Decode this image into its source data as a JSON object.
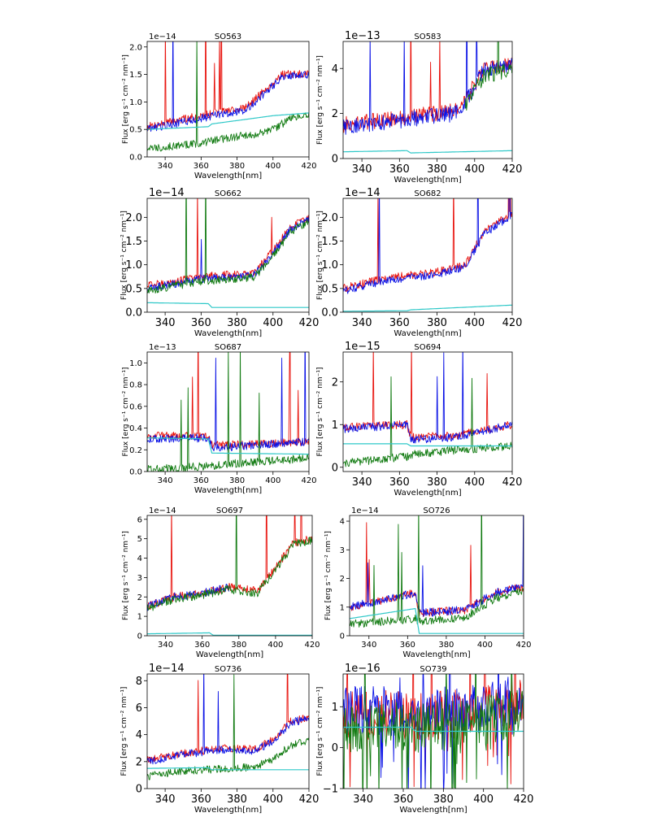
{
  "figure": {
    "colors": {
      "red": "#e8120c",
      "blue": "#0a12e6",
      "green": "#107a10",
      "cyan": "#2ec8c8"
    },
    "series_names": [
      "red",
      "blue",
      "green",
      "cyan"
    ]
  },
  "chart_data": [
    {
      "type": "line",
      "title": "SO563",
      "xlabel": "Wavelength[nm]",
      "ylabel": "Flux [erg s⁻¹ cm⁻² nm⁻¹]",
      "exponent": "1e−14",
      "xlim": [
        330,
        420
      ],
      "ylim": [
        0,
        2.1
      ],
      "xticks": [
        "340",
        "360",
        "380",
        "400",
        "420"
      ],
      "yticks": [
        "0.0",
        "0.5",
        "1.0",
        "1.5",
        "2.0"
      ],
      "series": [
        {
          "name": "red",
          "x": [
            330,
            345,
            360,
            375,
            385,
            395,
            405,
            420
          ],
          "values": [
            0.55,
            0.65,
            0.75,
            0.85,
            0.9,
            1.2,
            1.5,
            1.5
          ]
        },
        {
          "name": "blue",
          "x": [
            330,
            345,
            360,
            375,
            385,
            395,
            405,
            420
          ],
          "values": [
            0.5,
            0.6,
            0.7,
            0.8,
            0.85,
            1.15,
            1.45,
            1.5
          ]
        },
        {
          "name": "green",
          "x": [
            330,
            345,
            360,
            375,
            390,
            400,
            410,
            420
          ],
          "values": [
            0.15,
            0.2,
            0.25,
            0.35,
            0.4,
            0.5,
            0.7,
            0.8
          ]
        },
        {
          "name": "cyan",
          "x": [
            330,
            364,
            366,
            400,
            420
          ],
          "values": [
            0.5,
            0.55,
            0.6,
            0.75,
            0.8
          ]
        }
      ]
    },
    {
      "type": "line",
      "title": "SO583",
      "xlabel": "Wavelength[nm]",
      "ylabel": "Flux [erg s⁻¹ cm⁻² nm⁻¹]",
      "exponent": "1e−13",
      "xlim": [
        330,
        420
      ],
      "ylim": [
        0,
        5.2
      ],
      "xticks": [
        "340",
        "360",
        "380",
        "400",
        "420"
      ],
      "yticks": [
        "0",
        "2",
        "4"
      ],
      "series": [
        {
          "name": "red",
          "x": [
            330,
            350,
            370,
            390,
            395,
            405,
            420
          ],
          "values": [
            1.5,
            1.7,
            1.9,
            2.1,
            2.6,
            4.0,
            4.2
          ]
        },
        {
          "name": "blue",
          "x": [
            330,
            350,
            370,
            390,
            395,
            405,
            420
          ],
          "values": [
            1.4,
            1.6,
            1.8,
            2.0,
            2.5,
            3.9,
            4.1
          ]
        },
        {
          "name": "green",
          "x": [
            395,
            405,
            420
          ],
          "values": [
            2.4,
            3.7,
            3.9
          ]
        },
        {
          "name": "cyan",
          "x": [
            330,
            364,
            366,
            420
          ],
          "values": [
            0.3,
            0.35,
            0.25,
            0.35
          ]
        }
      ]
    },
    {
      "type": "line",
      "title": "SO662",
      "xlabel": "Wavelength[nm]",
      "ylabel": "Flux [erg s⁻¹ cm⁻² nm⁻¹]",
      "exponent": "1e−14",
      "xlim": [
        330,
        420
      ],
      "ylim": [
        0,
        2.4
      ],
      "xticks": [
        "340",
        "360",
        "380",
        "400",
        "420"
      ],
      "yticks": [
        "0.0",
        "0.5",
        "1.0",
        "1.5",
        "2.0"
      ],
      "series": [
        {
          "name": "red",
          "x": [
            330,
            345,
            360,
            380,
            390,
            400,
            410,
            420
          ],
          "values": [
            0.55,
            0.65,
            0.75,
            0.8,
            0.85,
            1.3,
            1.8,
            2.0
          ]
        },
        {
          "name": "blue",
          "x": [
            330,
            345,
            360,
            380,
            390,
            400,
            410,
            420
          ],
          "values": [
            0.5,
            0.6,
            0.7,
            0.75,
            0.8,
            1.25,
            1.75,
            1.95
          ]
        },
        {
          "name": "green",
          "x": [
            330,
            345,
            360,
            380,
            390,
            400,
            410,
            420
          ],
          "values": [
            0.45,
            0.55,
            0.65,
            0.7,
            0.75,
            1.2,
            1.7,
            1.9
          ]
        },
        {
          "name": "cyan",
          "x": [
            330,
            364,
            366,
            420
          ],
          "values": [
            0.2,
            0.18,
            0.1,
            0.1
          ]
        }
      ]
    },
    {
      "type": "line",
      "title": "SO682",
      "xlabel": "Wavelength[nm]",
      "ylabel": "Flux [erg s⁻¹ cm⁻² nm⁻¹]",
      "exponent": "1e−14",
      "xlim": [
        330,
        420
      ],
      "ylim": [
        0,
        2.4
      ],
      "xticks": [
        "340",
        "360",
        "380",
        "400",
        "420"
      ],
      "yticks": [
        "0.0",
        "0.5",
        "1.0",
        "1.5",
        "2.0"
      ],
      "series": [
        {
          "name": "red",
          "x": [
            330,
            345,
            360,
            380,
            395,
            405,
            420
          ],
          "values": [
            0.5,
            0.65,
            0.75,
            0.85,
            1.0,
            1.7,
            2.1
          ]
        },
        {
          "name": "blue",
          "x": [
            330,
            345,
            360,
            380,
            395,
            405,
            420
          ],
          "values": [
            0.45,
            0.6,
            0.7,
            0.8,
            0.95,
            1.65,
            2.05
          ]
        },
        {
          "name": "green",
          "x": [],
          "values": []
        },
        {
          "name": "cyan",
          "x": [
            330,
            364,
            366,
            420
          ],
          "values": [
            0.02,
            0.03,
            0.05,
            0.15
          ]
        }
      ]
    },
    {
      "type": "line",
      "title": "SO687",
      "xlabel": "Wavelength[nm]",
      "ylabel": "Flux [erg s⁻¹ cm⁻² nm⁻¹]",
      "exponent": "1e−13",
      "xlim": [
        330,
        420
      ],
      "ylim": [
        0,
        1.1
      ],
      "xticks": [
        "340",
        "360",
        "380",
        "400",
        "420"
      ],
      "yticks": [
        "0.0",
        "0.2",
        "0.4",
        "0.6",
        "0.8",
        "1.0"
      ],
      "series": [
        {
          "name": "red",
          "x": [
            330,
            364,
            366,
            390,
            420
          ],
          "values": [
            0.33,
            0.32,
            0.24,
            0.25,
            0.28
          ]
        },
        {
          "name": "blue",
          "x": [
            330,
            364,
            366,
            390,
            420
          ],
          "values": [
            0.3,
            0.31,
            0.22,
            0.24,
            0.28
          ]
        },
        {
          "name": "green",
          "x": [
            330,
            364,
            390,
            420
          ],
          "values": [
            0.02,
            0.05,
            0.09,
            0.12
          ]
        },
        {
          "name": "cyan",
          "x": [
            330,
            364,
            366,
            420
          ],
          "values": [
            0.31,
            0.3,
            0.17,
            0.16
          ]
        }
      ]
    },
    {
      "type": "line",
      "title": "SO694",
      "xlabel": "Wavelength[nm]",
      "ylabel": "Flux [erg s⁻¹ cm⁻² nm⁻¹]",
      "exponent": "1e−15",
      "xlim": [
        330,
        420
      ],
      "ylim": [
        -0.1,
        2.7
      ],
      "xticks": [
        "340",
        "360",
        "380",
        "400",
        "420"
      ],
      "yticks": [
        "0",
        "1",
        "2"
      ],
      "series": [
        {
          "name": "red",
          "x": [
            330,
            364,
            366,
            390,
            420
          ],
          "values": [
            0.95,
            1.0,
            0.7,
            0.75,
            1.0
          ]
        },
        {
          "name": "blue",
          "x": [
            330,
            364,
            366,
            390,
            420
          ],
          "values": [
            0.9,
            1.0,
            0.65,
            0.7,
            1.0
          ]
        },
        {
          "name": "green",
          "x": [
            330,
            364,
            366,
            390,
            420
          ],
          "values": [
            0.1,
            0.25,
            0.3,
            0.4,
            0.5
          ]
        },
        {
          "name": "cyan",
          "x": [
            330,
            364,
            366,
            420
          ],
          "values": [
            0.55,
            0.55,
            0.5,
            0.5
          ]
        }
      ]
    },
    {
      "type": "line",
      "title": "SO697",
      "xlabel": "Wavelength[nm]",
      "ylabel": "Flux [erg s⁻¹ cm⁻² nm⁻¹]",
      "exponent": "1e−14",
      "xlim": [
        330,
        420
      ],
      "ylim": [
        0,
        6.2
      ],
      "xticks": [
        "340",
        "360",
        "380",
        "400",
        "420"
      ],
      "yticks": [
        "0",
        "1",
        "2",
        "3",
        "4",
        "5",
        "6"
      ],
      "series": [
        {
          "name": "red",
          "x": [
            330,
            345,
            360,
            375,
            390,
            400,
            410,
            420
          ],
          "values": [
            1.5,
            2.0,
            2.2,
            2.5,
            2.3,
            3.5,
            4.8,
            5.0
          ]
        },
        {
          "name": "blue",
          "x": [
            330,
            345,
            360,
            375
          ],
          "values": [
            1.5,
            2.0,
            2.2,
            2.5
          ]
        },
        {
          "name": "green",
          "x": [
            330,
            345,
            360,
            375,
            390,
            400,
            410,
            420
          ],
          "values": [
            1.4,
            1.9,
            2.1,
            2.4,
            2.2,
            3.4,
            4.7,
            4.9
          ]
        },
        {
          "name": "cyan",
          "x": [
            330,
            364,
            366,
            420
          ],
          "values": [
            0.1,
            0.15,
            0.03,
            0.03
          ]
        }
      ]
    },
    {
      "type": "line",
      "title": "SO726",
      "xlabel": "Wavelength[nm]",
      "ylabel": "Flux [erg s⁻¹ cm⁻² nm⁻¹]",
      "exponent": "1e−14",
      "xlim": [
        330,
        420
      ],
      "ylim": [
        0,
        4.2
      ],
      "xticks": [
        "340",
        "360",
        "380",
        "400",
        "420"
      ],
      "yticks": [
        "0",
        "1",
        "2",
        "3",
        "4"
      ],
      "series": [
        {
          "name": "red",
          "x": [
            330,
            364,
            366,
            390,
            405,
            420
          ],
          "values": [
            1.0,
            1.5,
            0.8,
            0.9,
            1.5,
            1.7
          ]
        },
        {
          "name": "blue",
          "x": [
            330,
            364,
            366,
            390,
            405,
            420
          ],
          "values": [
            1.0,
            1.5,
            0.8,
            0.9,
            1.5,
            1.7
          ]
        },
        {
          "name": "green",
          "x": [
            330,
            364,
            366,
            390,
            405,
            420
          ],
          "values": [
            0.4,
            0.6,
            0.5,
            0.65,
            1.3,
            1.6
          ]
        },
        {
          "name": "cyan",
          "x": [
            330,
            364,
            366,
            420
          ],
          "values": [
            0.6,
            0.95,
            0.08,
            0.08
          ]
        }
      ]
    },
    {
      "type": "line",
      "title": "SO736",
      "xlabel": "Wavelength[nm]",
      "ylabel": "Flux [erg s⁻¹ cm⁻² nm⁻¹]",
      "exponent": "1e−14",
      "xlim": [
        330,
        420
      ],
      "ylim": [
        0,
        8.5
      ],
      "xticks": [
        "340",
        "360",
        "380",
        "400",
        "420"
      ],
      "yticks": [
        "0",
        "2",
        "4",
        "6",
        "8"
      ],
      "series": [
        {
          "name": "red",
          "x": [
            330,
            345,
            360,
            375,
            390,
            400,
            410,
            420
          ],
          "values": [
            2.1,
            2.5,
            2.8,
            3.0,
            2.9,
            3.6,
            5.0,
            5.3
          ]
        },
        {
          "name": "blue",
          "x": [
            330,
            345,
            360,
            375,
            390,
            400,
            410,
            420
          ],
          "values": [
            2.0,
            2.4,
            2.7,
            2.9,
            2.8,
            3.5,
            4.9,
            5.2
          ]
        },
        {
          "name": "green",
          "x": [
            330,
            345,
            360,
            375,
            390,
            400,
            410,
            420
          ],
          "values": [
            0.9,
            1.2,
            1.4,
            1.5,
            1.6,
            2.2,
            3.2,
            3.6
          ]
        },
        {
          "name": "cyan",
          "x": [
            330,
            364,
            366,
            420
          ],
          "values": [
            1.5,
            1.55,
            1.4,
            1.4
          ]
        }
      ]
    },
    {
      "type": "line",
      "title": "SO739",
      "xlabel": "Wavelength[nm]",
      "ylabel": "Flux [erg s⁻¹ cm⁻² nm⁻¹]",
      "exponent": "1e−16",
      "xlim": [
        330,
        420
      ],
      "ylim": [
        -1,
        1.8
      ],
      "xticks": [
        "340",
        "360",
        "380",
        "400",
        "420"
      ],
      "yticks": [
        "−1",
        "0",
        "1"
      ],
      "series": [
        {
          "name": "red",
          "x": [
            330,
            364,
            366,
            395,
            420
          ],
          "values": [
            0.8,
            0.8,
            0.75,
            0.85,
            1.2
          ]
        },
        {
          "name": "blue",
          "x": [
            330,
            364,
            366,
            395,
            420
          ],
          "values": [
            0.9,
            0.9,
            0.85,
            0.95,
            1.2
          ]
        },
        {
          "name": "green",
          "x": [
            330,
            364,
            366,
            395,
            420
          ],
          "values": [
            0.5,
            0.5,
            0.45,
            0.6,
            0.9
          ]
        },
        {
          "name": "cyan",
          "x": [
            330,
            364,
            366,
            420
          ],
          "values": [
            0.5,
            0.5,
            0.4,
            0.4
          ]
        }
      ]
    }
  ]
}
